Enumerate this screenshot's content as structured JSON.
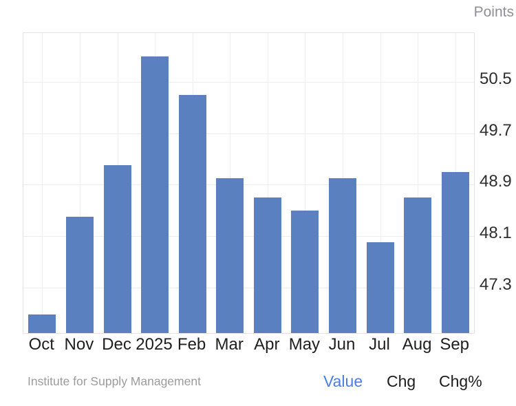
{
  "header": {
    "units_label": "Points"
  },
  "chart_data": {
    "type": "bar",
    "title": "",
    "categories": [
      "Oct",
      "Nov",
      "Dec",
      "2025",
      "Feb",
      "Mar",
      "Apr",
      "May",
      "Jun",
      "Jul",
      "Aug",
      "Sep"
    ],
    "values": [
      46.5,
      48.4,
      49.2,
      50.9,
      50.3,
      49.0,
      48.7,
      48.5,
      49.0,
      48.0,
      48.7,
      49.1
    ],
    "xlabel": "",
    "ylabel": "Points",
    "yticks": [
      50.5,
      49.7,
      48.9,
      48.1,
      47.3
    ],
    "ylim": [
      46.59,
      51.26
    ],
    "grid": true,
    "legend_position": "none",
    "bar_color": "#5a80c0"
  },
  "footer": {
    "source": "Institute for Supply Management",
    "modes": [
      {
        "label": "Value",
        "active": true
      },
      {
        "label": "Chg",
        "active": false
      },
      {
        "label": "Chg%",
        "active": false
      }
    ]
  },
  "colors": {
    "accent_blue": "#4a7de8",
    "bar_blue": "#5a80c0",
    "grid_gray": "#ececec",
    "text_dark": "#1e1e1e",
    "text_muted": "#9c9c9c"
  }
}
